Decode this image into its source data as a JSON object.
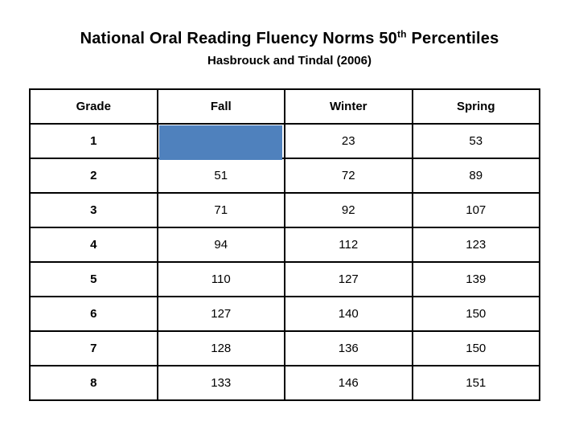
{
  "page": {
    "title_prefix": "National Oral Reading Fluency Norms 50",
    "title_superscript": "th",
    "title_suffix": " Percentiles",
    "subtitle": "Hasbrouck and Tindal (2006)"
  },
  "table": {
    "columns": [
      "Grade",
      "Fall",
      "Winter",
      "Spring"
    ],
    "highlight_color": "#4F81BD",
    "highlight_cell": "grade 1 Fall cell covered by solid blue rectangle, value not visible",
    "rows": [
      {
        "grade": "1",
        "fall": "",
        "winter": "23",
        "spring": "53"
      },
      {
        "grade": "2",
        "fall": "51",
        "winter": "72",
        "spring": "89"
      },
      {
        "grade": "3",
        "fall": "71",
        "winter": "92",
        "spring": "107"
      },
      {
        "grade": "4",
        "fall": "94",
        "winter": "112",
        "spring": "123"
      },
      {
        "grade": "5",
        "fall": "110",
        "winter": "127",
        "spring": "139"
      },
      {
        "grade": "6",
        "fall": "127",
        "winter": "140",
        "spring": "150"
      },
      {
        "grade": "7",
        "fall": "128",
        "winter": "136",
        "spring": "150"
      },
      {
        "grade": "8",
        "fall": "133",
        "winter": "146",
        "spring": "151"
      }
    ]
  },
  "chart_data": {
    "type": "table",
    "title": "National Oral Reading Fluency Norms 50th Percentiles",
    "subtitle": "Hasbrouck and Tindal (2006)",
    "columns": [
      "Grade",
      "Fall",
      "Winter",
      "Spring"
    ],
    "rows": [
      [
        "1",
        "",
        "23",
        "53"
      ],
      [
        "2",
        "51",
        "72",
        "89"
      ],
      [
        "3",
        "71",
        "92",
        "107"
      ],
      [
        "4",
        "94",
        "112",
        "123"
      ],
      [
        "5",
        "110",
        "127",
        "139"
      ],
      [
        "6",
        "127",
        "140",
        "150"
      ],
      [
        "7",
        "128",
        "136",
        "150"
      ],
      [
        "8",
        "133",
        "146",
        "151"
      ]
    ],
    "annotations": [
      "Grade 1 Fall cell is hidden by a solid blue (#4F81BD) rectangle"
    ]
  }
}
